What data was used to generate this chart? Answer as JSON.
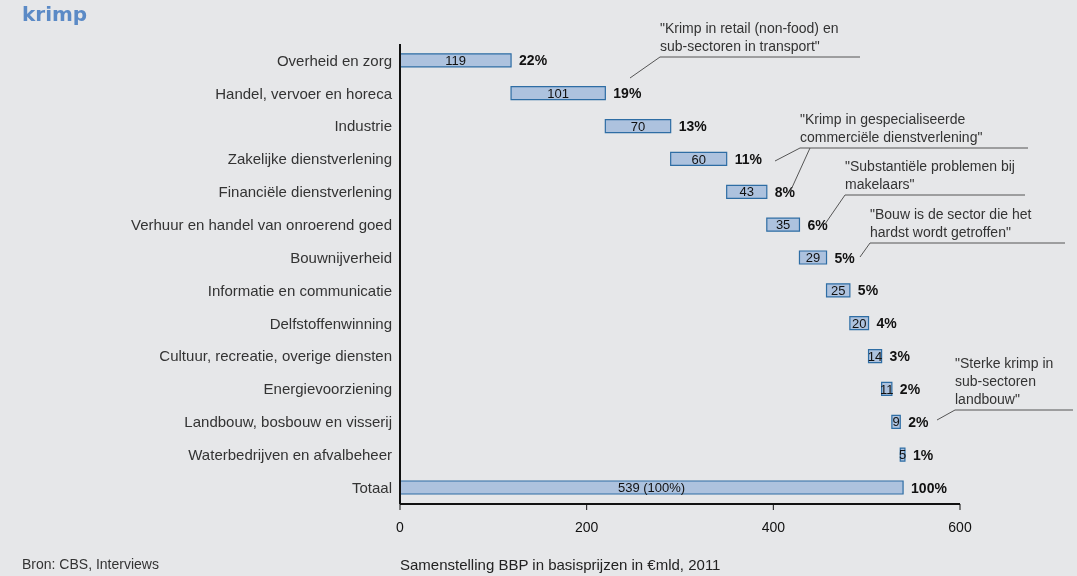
{
  "chart_data": {
    "type": "bar",
    "orientation": "horizontal",
    "title": "krimp",
    "xlabel": "Samenstelling BBP in basisprijzen in €mld, 2011",
    "categories": [
      "Overheid en zorg",
      "Handel, vervoer en horeca",
      "Industrie",
      "Zakelijke dienstverlening",
      "Financiële dienstverlening",
      "Verhuur en handel van onroerend goed",
      "Bouwnijverheid",
      "Informatie en communicatie",
      "Delfstoffenwinning",
      "Cultuur, recreatie, overige diensten",
      "Energievoorziening",
      "Landbouw, bosbouw en visserij",
      "Waterbedrijven en afvalbeheer",
      "Totaal"
    ],
    "values": [
      119,
      101,
      70,
      60,
      43,
      35,
      29,
      25,
      20,
      14,
      11,
      9,
      5,
      539
    ],
    "base": [
      0,
      119,
      220,
      290,
      350,
      393,
      428,
      457,
      482,
      502,
      516,
      527,
      536,
      0
    ],
    "value_labels": [
      "119",
      "101",
      "70",
      "60",
      "43",
      "35",
      "29",
      "25",
      "20",
      "14",
      "11",
      "9",
      "5",
      "539 (100%)"
    ],
    "color": "#adc2de",
    "xlim": [
      0,
      600
    ],
    "xticks": [
      0,
      200,
      400,
      600
    ],
    "annotations": [
      {
        "text": "22%",
        "x": 119,
        "y": "Overheid en zorg"
      },
      {
        "text": "19%",
        "x": 220,
        "y": "Handel, vervoer en horeca"
      },
      {
        "text": "13%",
        "x": 290,
        "y": "Industrie"
      },
      {
        "text": "11%",
        "x": 350,
        "y": "Zakelijke dienstverlening"
      },
      {
        "text": "8%",
        "x": 393,
        "y": "Financiële dienstverlening"
      },
      {
        "text": "6%",
        "x": 428,
        "y": "Verhuur en handel van onroerend goed"
      },
      {
        "text": "5%",
        "x": 457,
        "y": "Bouwnijverheid"
      },
      {
        "text": "5%",
        "x": 482,
        "y": "Informatie en communicatie"
      },
      {
        "text": "4%",
        "x": 502,
        "y": "Delfstoffenwinning"
      },
      {
        "text": "3%",
        "x": 516,
        "y": "Cultuur, recreatie, overige diensten"
      },
      {
        "text": "2%",
        "x": 527,
        "y": "Energievoorziening"
      },
      {
        "text": "2%",
        "x": 536,
        "y": "Landbouw, bosbouw en visserij"
      },
      {
        "text": "1%",
        "x": 541,
        "y": "Waterbedrijven en afvalbeheer"
      },
      {
        "text": "100%",
        "x": 539,
        "y": "Totaal"
      },
      "\"Krimp in retail (non-food) en sub-sectoren in transport\"",
      "\"Krimp in gespecialiseerde commerciële dienstverlening\"",
      "\"Substantiële problemen bij makelaars\"",
      "\"Bouw is de sector die het hardst wordt getroffen\"",
      "\"Sterke krimp in sub-sectoren landbouw\"",
      "Bron: CBS, Interviews"
    ]
  }
}
